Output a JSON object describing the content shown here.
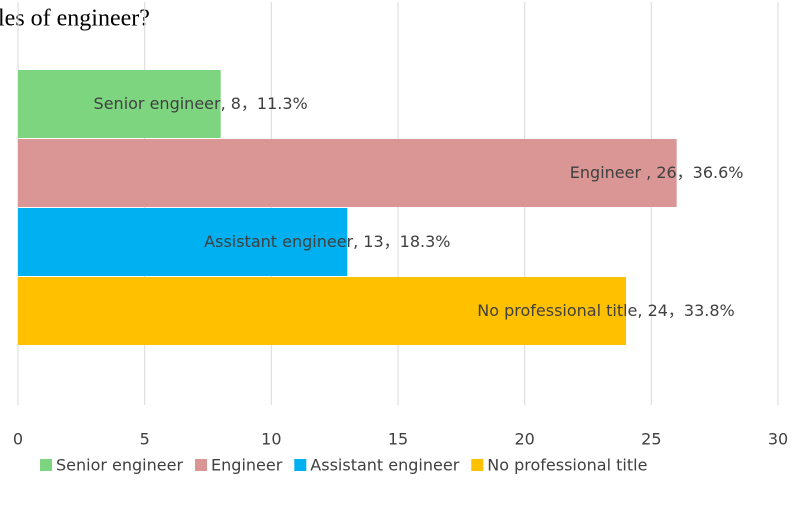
{
  "chart_data": {
    "type": "barh",
    "title": "les of engineer?",
    "categories": [
      "Senior engineer",
      "Engineer",
      "Assistant engineer",
      "No professional title"
    ],
    "values": [
      8,
      26,
      13,
      24
    ],
    "value_labels": [
      "Senior engineer, 8，11.3%",
      "Engineer , 26，36.6%",
      "Assistant engineer, 13，18.3%",
      "No professional title, 24，33.8%"
    ],
    "colors": [
      "#7dd67f",
      "#d99694",
      "#00b0f0",
      "#ffc000"
    ],
    "xlim": [
      0,
      30
    ],
    "xticks": [
      0,
      5,
      10,
      15,
      20,
      25,
      30
    ],
    "grid": true,
    "legend": "bottom"
  }
}
